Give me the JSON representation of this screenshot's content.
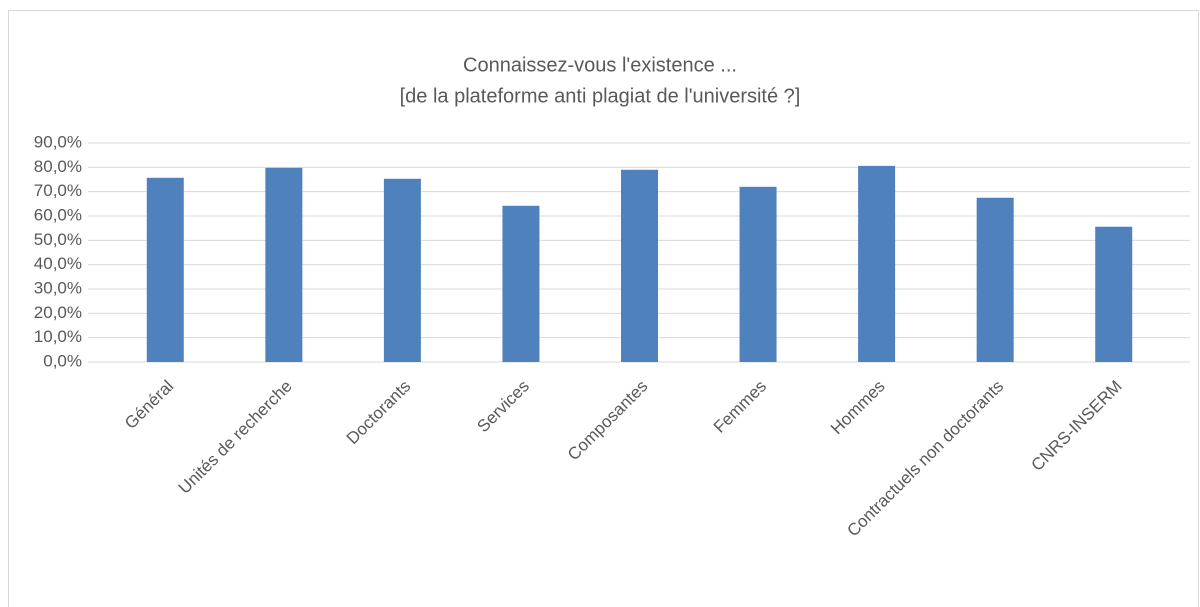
{
  "chart_data": {
    "type": "bar",
    "title": [
      "Connaissez-vous l'existence ...",
      "[de la plateforme anti plagiat de l'université ?]"
    ],
    "categories": [
      "Général",
      "Unités de recherche",
      "Doctorants",
      "Services",
      "Composantes",
      "Femmes",
      "Hommes",
      "Contractuels non doctorants",
      "CNRS-INSERM"
    ],
    "values": [
      75.7,
      79.8,
      75.3,
      64.2,
      79.0,
      72.0,
      80.6,
      67.5,
      55.6
    ],
    "color": "#4f81bd",
    "ylim": [
      0,
      90
    ],
    "yticks": [
      {
        "value": 0,
        "label": "0,0%"
      },
      {
        "value": 10,
        "label": "10,0%"
      },
      {
        "value": 20,
        "label": "20,0%"
      },
      {
        "value": 30,
        "label": "30,0%"
      },
      {
        "value": 40,
        "label": "40,0%"
      },
      {
        "value": 50,
        "label": "50,0%"
      },
      {
        "value": 60,
        "label": "60,0%"
      },
      {
        "value": 70,
        "label": "70,0%"
      },
      {
        "value": 80,
        "label": "80,0%"
      },
      {
        "value": 90,
        "label": "90,0%"
      }
    ],
    "grid": true
  }
}
